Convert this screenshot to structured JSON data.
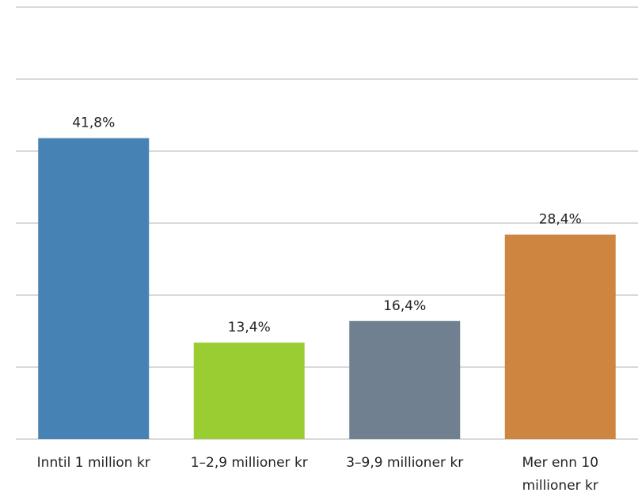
{
  "chart_data": {
    "type": "bar",
    "categories": [
      "Inntil 1 million kr",
      "1–2,9 millioner kr",
      "3–9,9 millioner kr",
      "Mer enn 10 millioner kr"
    ],
    "values": [
      41.8,
      13.4,
      16.4,
      28.4
    ],
    "value_labels": [
      "41,8%",
      "13,4%",
      "16,4%",
      "28,4%"
    ],
    "colors": [
      "#4682b4",
      "#9acd32",
      "#708090",
      "#cd853f"
    ],
    "ylim": [
      0,
      60
    ],
    "yticks": [
      0,
      10,
      20,
      30,
      40,
      50,
      60
    ],
    "grid": true
  }
}
